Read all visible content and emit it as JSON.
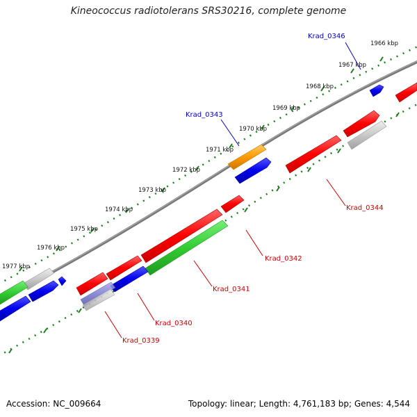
{
  "title": "Kineococcus radiotolerans SRS30216, complete genome",
  "footer": {
    "accession": "Accession: NC_009664",
    "topology": "Topology: linear; Length: 4,761,183 bp; Genes: 4,544"
  },
  "colors": {
    "backbone": "#7a7a7a",
    "ruler_dots": "#1f7a1f",
    "label_forward": "#0000cc",
    "label_reverse": "#cc0000"
  },
  "ruler_labels": [
    "1966 kbp",
    "1967 kbp",
    "1968 kbp",
    "1969 kbp",
    "1970 kbp",
    "1971 kbp",
    "1972 kbp",
    "1973 kbp",
    "1974 kbp",
    "1975 kbp",
    "1976 kbp",
    "1977 kbp"
  ],
  "gene_labels": [
    {
      "name": "Krad_0346",
      "strand": "forward"
    },
    {
      "name": "Krad_0343",
      "strand": "forward"
    },
    {
      "name": "Krad_0344",
      "strand": "reverse"
    },
    {
      "name": "Krad_0342",
      "strand": "reverse"
    },
    {
      "name": "Krad_0341",
      "strand": "reverse"
    },
    {
      "name": "Krad_0340",
      "strand": "reverse"
    },
    {
      "name": "Krad_0339",
      "strand": "reverse"
    }
  ],
  "feature_colors": {
    "red": "#ff0000",
    "green": "#33cc33",
    "blue": "#0000ee",
    "orange": "#ff9900",
    "gray": "#c8c8c8",
    "purple": "#7777cc"
  }
}
